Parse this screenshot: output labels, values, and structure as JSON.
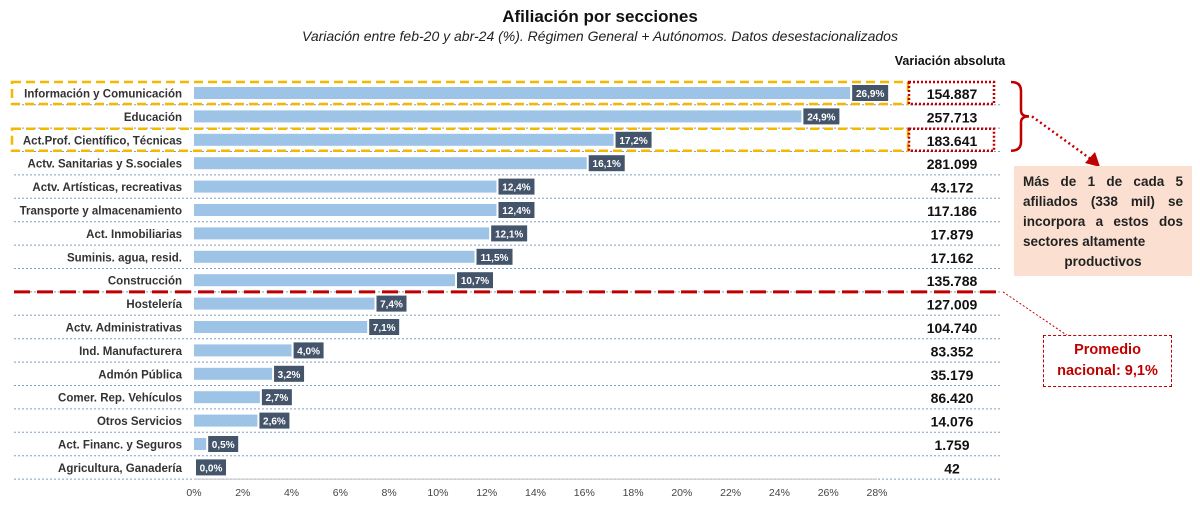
{
  "title": "Afiliación por secciones",
  "subtitle": "Variación entre feb-20 y abr-24 (%). Régimen General + Autónomos. Datos desestacionalizados",
  "abs_header": "Variación absoluta",
  "callout": {
    "text": "Más de 1 de cada 5 afiliados (338 mil) se incorpora a estos dos sectores altamente",
    "last_line": "productivos"
  },
  "promedio": {
    "line1": "Promedio",
    "line2": "nacional: 9,1%"
  },
  "colors": {
    "bar": "#9dc3e6",
    "label_bg": "#44546a",
    "highlight": "#f5b800",
    "red": "#c00000",
    "callout_bg": "#fbe0d2"
  },
  "chart_data": {
    "type": "bar",
    "orientation": "horizontal",
    "categories": [
      "Información y Comunicación",
      "Educación",
      "Act.Prof. Científico, Técnicas",
      "Actv. Sanitarias y S.sociales",
      "Actv. Artísticas, recreativas",
      "Transporte y almacenamiento",
      "Act. Inmobiliarias",
      "Suminis. agua, resid.",
      "Construcción",
      "Hostelería",
      "Actv. Administrativas",
      "Ind. Manufacturera",
      "Admón Pública",
      "Comer. Rep. Vehículos",
      "Otros Servicios",
      "Act. Financ. y Seguros",
      "Agricultura, Ganadería"
    ],
    "values": [
      26.9,
      24.9,
      17.2,
      16.1,
      12.4,
      12.4,
      12.1,
      11.5,
      10.7,
      7.4,
      7.1,
      4.0,
      3.2,
      2.7,
      2.6,
      0.5,
      0.0
    ],
    "value_labels": [
      "26,9%",
      "24,9%",
      "17,2%",
      "16,1%",
      "12,4%",
      "12,4%",
      "12,1%",
      "11,5%",
      "10,7%",
      "7,4%",
      "7,1%",
      "4,0%",
      "3,2%",
      "2,7%",
      "2,6%",
      "0,5%",
      "0,0%"
    ],
    "absolute_labels": [
      "154.887",
      "257.713",
      "183.641",
      "281.099",
      "43.172",
      "117.186",
      "17.879",
      "17.162",
      "135.788",
      "127.009",
      "104.740",
      "83.352",
      "35.179",
      "86.420",
      "14.076",
      "1.759",
      "42"
    ],
    "highlighted": [
      "Información y Comunicación",
      "Act.Prof. Científico, Técnicas"
    ],
    "xlim": [
      0,
      28
    ],
    "xticks": [
      0,
      2,
      4,
      6,
      8,
      10,
      12,
      14,
      16,
      18,
      20,
      22,
      24,
      26,
      28
    ],
    "xtick_labels": [
      "0%",
      "2%",
      "4%",
      "6%",
      "8%",
      "10%",
      "12%",
      "14%",
      "16%",
      "18%",
      "20%",
      "22%",
      "24%",
      "26%",
      "28%"
    ],
    "average_line": 9.1,
    "grid": false,
    "legend": "none"
  }
}
